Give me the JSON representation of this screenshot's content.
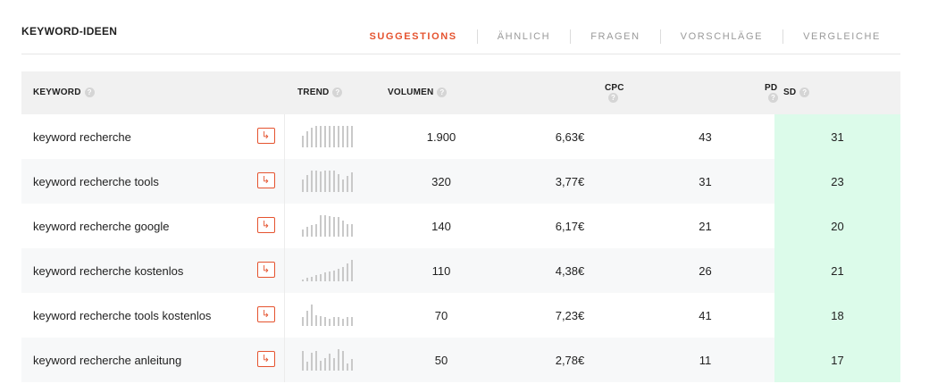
{
  "header": {
    "title": "KEYWORD-IDEEN",
    "tabs": [
      {
        "label": "SUGGESTIONS",
        "active": true
      },
      {
        "label": "ÄHNLICH"
      },
      {
        "label": "FRAGEN"
      },
      {
        "label": "VORSCHLÄGE"
      },
      {
        "label": "VERGLEICHE"
      }
    ]
  },
  "table": {
    "columns": {
      "keyword": "KEYWORD",
      "trend": "TREND",
      "volume": "VOLUMEN",
      "cpc": "CPC",
      "pd": "PD",
      "sd": "SD"
    },
    "help_glyph": "?",
    "open_glyph": "↳",
    "sd_highlight_color": "#dcfbea",
    "rows": [
      {
        "keyword": "keyword recherche",
        "volume": "1.900",
        "cpc": "6,63€",
        "pd": "43",
        "sd": "31",
        "trend": [
          0.55,
          0.75,
          0.9,
          1,
          1,
          1,
          1,
          1,
          1,
          1,
          1,
          1
        ]
      },
      {
        "keyword": "keyword recherche tools",
        "volume": "320",
        "cpc": "3,77€",
        "pd": "31",
        "sd": "23",
        "trend": [
          0.6,
          0.8,
          1,
          1,
          0.95,
          1,
          1,
          1,
          0.85,
          0.6,
          0.75,
          0.9
        ]
      },
      {
        "keyword": "keyword recherche google",
        "volume": "140",
        "cpc": "6,17€",
        "pd": "21",
        "sd": "20",
        "trend": [
          0.35,
          0.45,
          0.55,
          0.6,
          1,
          1,
          0.95,
          0.9,
          0.9,
          0.75,
          0.6,
          0.6
        ]
      },
      {
        "keyword": "keyword recherche kostenlos",
        "volume": "110",
        "cpc": "4,38€",
        "pd": "26",
        "sd": "21",
        "trend": [
          0.1,
          0.15,
          0.2,
          0.3,
          0.35,
          0.4,
          0.45,
          0.5,
          0.6,
          0.65,
          0.85,
          1
        ]
      },
      {
        "keyword": "keyword recherche tools kostenlos",
        "volume": "70",
        "cpc": "7,23€",
        "pd": "41",
        "sd": "18",
        "trend": [
          0.4,
          0.7,
          1,
          0.5,
          0.45,
          0.4,
          0.35,
          0.4,
          0.4,
          0.35,
          0.4,
          0.4
        ]
      },
      {
        "keyword": "keyword recherche anleitung",
        "volume": "50",
        "cpc": "2,78€",
        "pd": "11",
        "sd": "17",
        "trend": [
          0.9,
          0.4,
          0.85,
          0.9,
          0.45,
          0.6,
          0.8,
          0.6,
          1,
          0.9,
          0.35,
          0.55
        ]
      }
    ]
  }
}
